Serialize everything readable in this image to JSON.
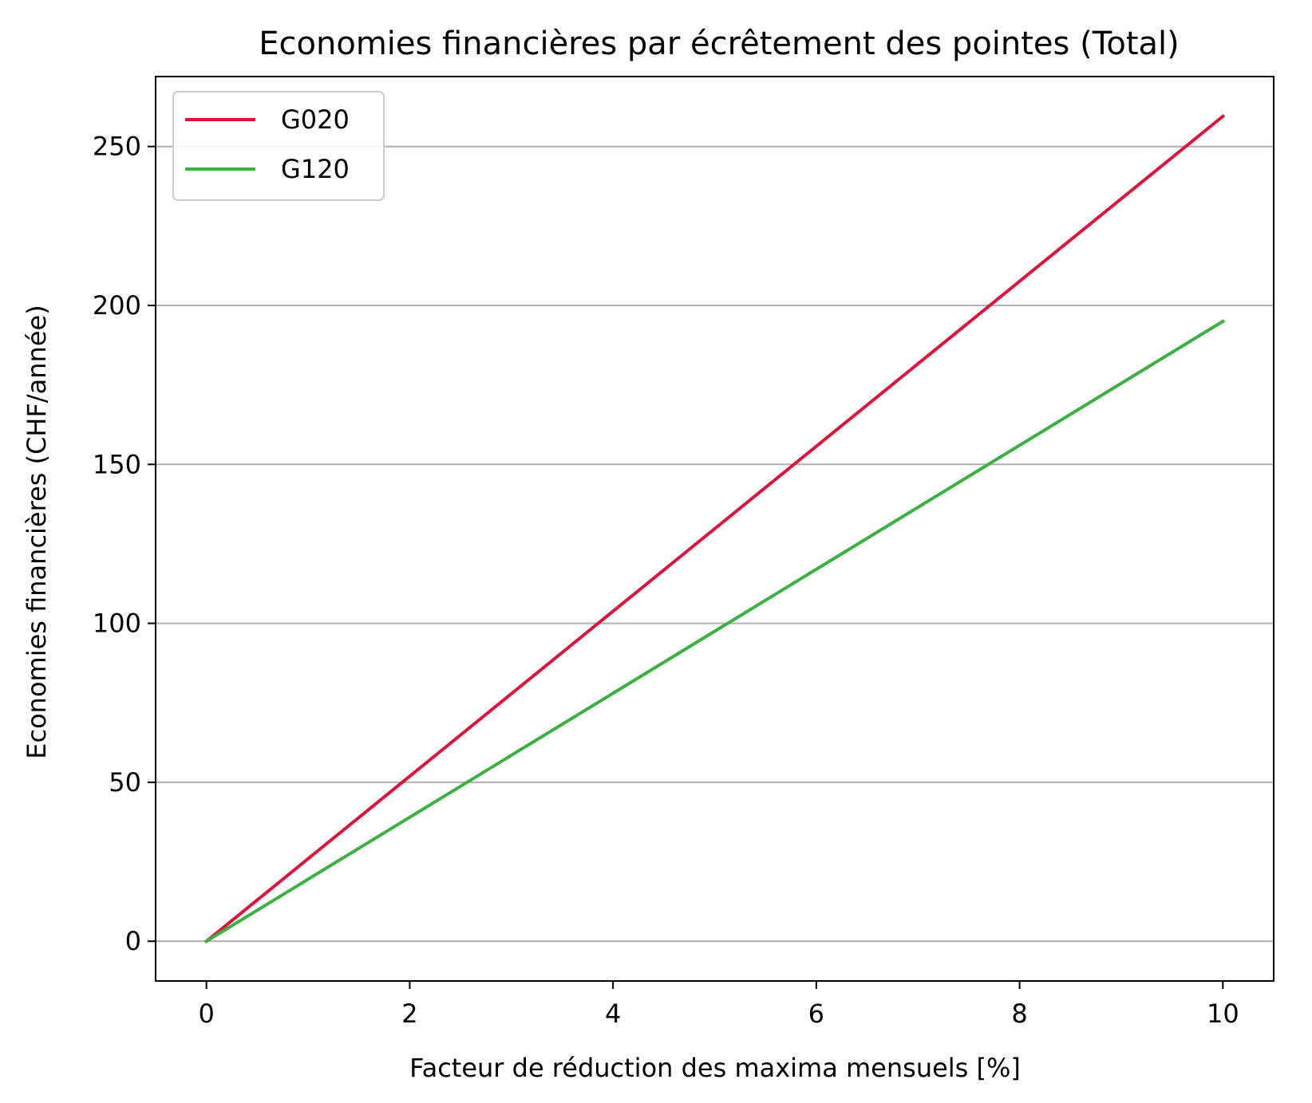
{
  "chart_data": {
    "type": "line",
    "title": "Economies financières par écrêtement des pointes (Total)",
    "xlabel": "Facteur de réduction des maxima mensuels [%]",
    "ylabel": "Economies financières (CHF/année)",
    "xlim": [
      -0.5,
      10.5
    ],
    "ylim": [
      -12.5,
      272
    ],
    "xticks": [
      0,
      2,
      4,
      6,
      8,
      10
    ],
    "yticks": [
      0,
      50,
      100,
      150,
      200,
      250
    ],
    "xtick_labels": [
      "0",
      "2",
      "4",
      "6",
      "8",
      "10"
    ],
    "ytick_labels": [
      "0",
      "50",
      "100",
      "150",
      "200",
      "250"
    ],
    "grid": "y",
    "legend_position": "top-left",
    "series": [
      {
        "name": "G020",
        "color": "#DC143C",
        "x": [
          0,
          10
        ],
        "y": [
          0,
          259.5
        ]
      },
      {
        "name": "G120",
        "color": "#3CB043",
        "x": [
          0,
          10
        ],
        "y": [
          0,
          195
        ]
      }
    ]
  }
}
